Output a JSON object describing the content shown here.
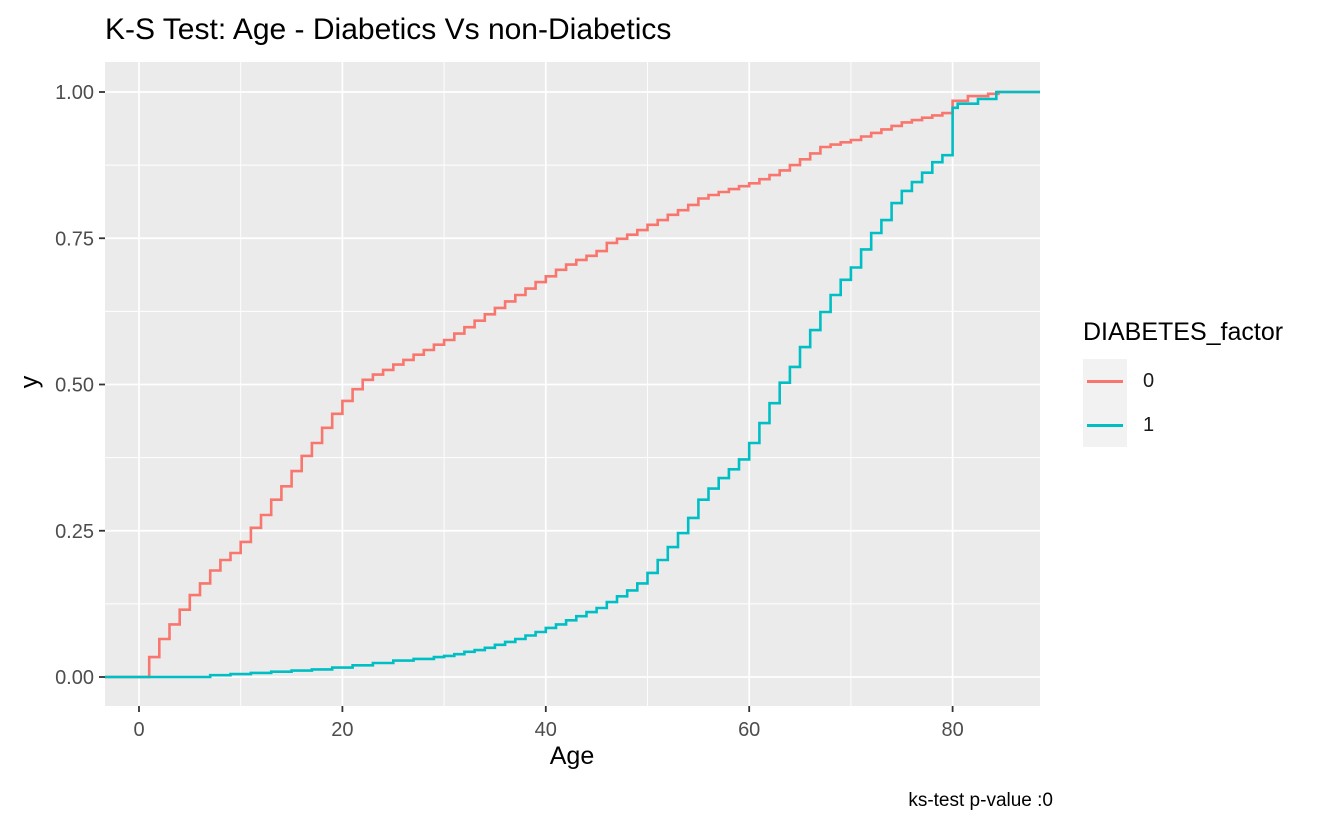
{
  "title": "K-S Test: Age - Diabetics Vs non-Diabetics",
  "caption": "ks-test p-value :0",
  "axes": {
    "x": {
      "label": "Age",
      "tick_labels": [
        "0",
        "20",
        "40",
        "60",
        "80"
      ],
      "tick_values": [
        0,
        20,
        40,
        60,
        80
      ],
      "minor_values": [
        10,
        30,
        50,
        70
      ],
      "range": [
        -3.4,
        88.6
      ]
    },
    "y": {
      "label": "y",
      "tick_labels": [
        "0.00",
        "0.25",
        "0.50",
        "0.75",
        "1.00"
      ],
      "tick_values": [
        0,
        0.25,
        0.5,
        0.75,
        1
      ],
      "minor_values": [
        0.125,
        0.375,
        0.625,
        0.875
      ],
      "range": [
        -0.05,
        1.05
      ]
    }
  },
  "legend": {
    "title": "DIABETES_factor",
    "entries": [
      {
        "label": "0",
        "color": "#F8766D"
      },
      {
        "label": "1",
        "color": "#00BFC4"
      }
    ]
  },
  "colors": {
    "panel_background": "#EBEBEB",
    "gridline": "#FFFFFF",
    "axis_text": "#4D4D4D",
    "tick_mark": "#333333",
    "legend_key_background": "#F2F2F2",
    "series_0": "#F8766D",
    "series_1": "#00BFC4"
  },
  "chart_data": {
    "type": "line",
    "subtype": "ecdf-step",
    "title": "K-S Test: Age - Diabetics Vs non-Diabetics",
    "xlabel": "Age",
    "ylabel": "y",
    "xlim": [
      -3.4,
      88.6
    ],
    "ylim": [
      -0.05,
      1.05
    ],
    "grid": true,
    "legend_position": "right",
    "legend_title": "DIABETES_factor",
    "annotation": "ks-test p-value :0",
    "series": [
      {
        "name": "0",
        "color": "#F8766D",
        "points": [
          [
            1,
            0.034
          ],
          [
            2,
            0.065
          ],
          [
            3,
            0.09
          ],
          [
            4,
            0.115
          ],
          [
            5,
            0.14
          ],
          [
            6,
            0.16
          ],
          [
            7,
            0.182
          ],
          [
            8,
            0.2
          ],
          [
            9,
            0.212
          ],
          [
            10,
            0.231
          ],
          [
            11,
            0.255
          ],
          [
            12,
            0.277
          ],
          [
            13,
            0.303
          ],
          [
            14,
            0.326
          ],
          [
            15,
            0.352
          ],
          [
            16,
            0.378
          ],
          [
            17,
            0.4
          ],
          [
            18,
            0.426
          ],
          [
            19,
            0.45
          ],
          [
            20,
            0.472
          ],
          [
            21,
            0.492
          ],
          [
            22,
            0.508
          ],
          [
            23,
            0.517
          ],
          [
            24,
            0.525
          ],
          [
            25,
            0.534
          ],
          [
            26,
            0.542
          ],
          [
            27,
            0.551
          ],
          [
            28,
            0.559
          ],
          [
            29,
            0.568
          ],
          [
            30,
            0.576
          ],
          [
            31,
            0.587
          ],
          [
            32,
            0.598
          ],
          [
            33,
            0.609
          ],
          [
            34,
            0.62
          ],
          [
            35,
            0.631
          ],
          [
            36,
            0.642
          ],
          [
            37,
            0.653
          ],
          [
            38,
            0.664
          ],
          [
            39,
            0.675
          ],
          [
            40,
            0.685
          ],
          [
            41,
            0.696
          ],
          [
            42,
            0.705
          ],
          [
            43,
            0.713
          ],
          [
            44,
            0.72
          ],
          [
            45,
            0.728
          ],
          [
            46,
            0.742
          ],
          [
            47,
            0.749
          ],
          [
            48,
            0.756
          ],
          [
            49,
            0.764
          ],
          [
            50,
            0.773
          ],
          [
            51,
            0.781
          ],
          [
            52,
            0.79
          ],
          [
            53,
            0.798
          ],
          [
            54,
            0.807
          ],
          [
            55,
            0.818
          ],
          [
            56,
            0.824
          ],
          [
            57,
            0.829
          ],
          [
            58,
            0.834
          ],
          [
            59,
            0.839
          ],
          [
            60,
            0.844
          ],
          [
            61,
            0.851
          ],
          [
            62,
            0.858
          ],
          [
            63,
            0.866
          ],
          [
            64,
            0.875
          ],
          [
            65,
            0.885
          ],
          [
            66,
            0.895
          ],
          [
            67,
            0.906
          ],
          [
            68,
            0.91
          ],
          [
            69,
            0.914
          ],
          [
            70,
            0.918
          ],
          [
            71,
            0.924
          ],
          [
            72,
            0.93
          ],
          [
            73,
            0.936
          ],
          [
            74,
            0.942
          ],
          [
            75,
            0.948
          ],
          [
            76,
            0.952
          ],
          [
            77,
            0.956
          ],
          [
            78,
            0.96
          ],
          [
            79,
            0.964
          ],
          [
            80,
            0.985
          ],
          [
            81.5,
            0.993
          ],
          [
            83.5,
            0.997
          ],
          [
            84.5,
            1.0
          ]
        ]
      },
      {
        "name": "1",
        "color": "#00BFC4",
        "points": [
          [
            7,
            0.003
          ],
          [
            9,
            0.005
          ],
          [
            11,
            0.007
          ],
          [
            13,
            0.009
          ],
          [
            15,
            0.011
          ],
          [
            17,
            0.013
          ],
          [
            19,
            0.016
          ],
          [
            21,
            0.02
          ],
          [
            23,
            0.024
          ],
          [
            25,
            0.028
          ],
          [
            27,
            0.031
          ],
          [
            29,
            0.034
          ],
          [
            30,
            0.036
          ],
          [
            31,
            0.039
          ],
          [
            32,
            0.043
          ],
          [
            33,
            0.046
          ],
          [
            34,
            0.05
          ],
          [
            35,
            0.055
          ],
          [
            36,
            0.06
          ],
          [
            37,
            0.065
          ],
          [
            38,
            0.071
          ],
          [
            39,
            0.077
          ],
          [
            40,
            0.084
          ],
          [
            41,
            0.09
          ],
          [
            42,
            0.097
          ],
          [
            43,
            0.104
          ],
          [
            44,
            0.111
          ],
          [
            45,
            0.118
          ],
          [
            46,
            0.128
          ],
          [
            47,
            0.138
          ],
          [
            48,
            0.148
          ],
          [
            49,
            0.16
          ],
          [
            50,
            0.178
          ],
          [
            51,
            0.2
          ],
          [
            52,
            0.222
          ],
          [
            53,
            0.246
          ],
          [
            54,
            0.272
          ],
          [
            55,
            0.303
          ],
          [
            56,
            0.322
          ],
          [
            57,
            0.34
          ],
          [
            58,
            0.355
          ],
          [
            59,
            0.372
          ],
          [
            60,
            0.4
          ],
          [
            61,
            0.434
          ],
          [
            62,
            0.468
          ],
          [
            63,
            0.503
          ],
          [
            64,
            0.53
          ],
          [
            65,
            0.564
          ],
          [
            66,
            0.593
          ],
          [
            67,
            0.624
          ],
          [
            68,
            0.653
          ],
          [
            69,
            0.679
          ],
          [
            70,
            0.7
          ],
          [
            71,
            0.731
          ],
          [
            72,
            0.759
          ],
          [
            73,
            0.781
          ],
          [
            74,
            0.81
          ],
          [
            75,
            0.831
          ],
          [
            76,
            0.846
          ],
          [
            77,
            0.862
          ],
          [
            78,
            0.88
          ],
          [
            79,
            0.892
          ],
          [
            80,
            0.973
          ],
          [
            80.5,
            0.98
          ],
          [
            82.5,
            0.988
          ],
          [
            84.3,
            1.0
          ]
        ]
      }
    ]
  }
}
